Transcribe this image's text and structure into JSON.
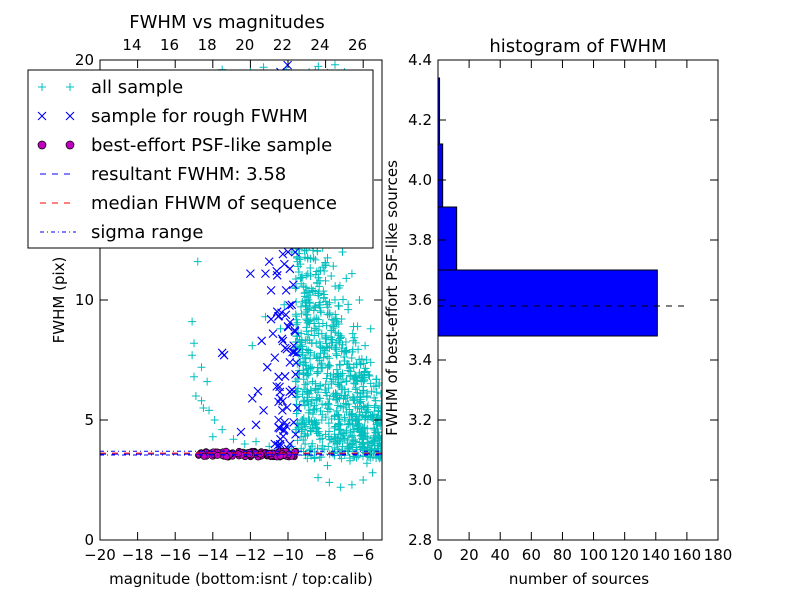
{
  "chart_data": [
    {
      "type": "scatter",
      "title": "FWHM vs magnitudes",
      "xlabel": "magnitude (bottom:isnt / top:calib)",
      "ylabel": "FWHM (pix)",
      "xlim": [
        -20,
        -5
      ],
      "ylim": [
        0,
        20
      ],
      "x_ticks": [
        -20,
        -18,
        -16,
        -14,
        -12,
        -10,
        -8,
        -6
      ],
      "x_tick_labels": [
        "−20",
        "−18",
        "−16",
        "−14",
        "−12",
        "−10",
        "−8",
        "−6"
      ],
      "y_ticks": [
        0,
        5,
        10,
        15,
        20
      ],
      "y_tick_labels": [
        "0",
        "5",
        "10",
        "15",
        "20"
      ],
      "top_axis": {
        "offset": 32.3,
        "ticks": [
          14,
          16,
          18,
          20,
          22,
          24,
          26
        ],
        "tick_labels": [
          "14",
          "16",
          "18",
          "20",
          "22",
          "24",
          "26"
        ]
      },
      "legend": {
        "placement": "upper-left",
        "entries": [
          {
            "label": "all sample",
            "marker": "+",
            "color": "#00bfbf"
          },
          {
            "label": "sample for rough FWHM",
            "marker": "x",
            "color": "#0000ff"
          },
          {
            "label": "best-effort PSF-like sample",
            "marker": "o",
            "color": "#bf00bf"
          },
          {
            "label": "resultant FWHM: 3.58",
            "marker": "dashed",
            "color": "#0000ff"
          },
          {
            "label": "median FHWM of sequence",
            "marker": "dashed",
            "color": "#ff0000"
          },
          {
            "label": "sigma range",
            "marker": "dashdot",
            "color": "#0000ff"
          }
        ]
      },
      "series": [
        {
          "name": "all sample",
          "points": [
            [
              -15.1,
              9.1
            ],
            [
              -15.0,
              8.2
            ],
            [
              -14.8,
              11.6
            ],
            [
              -15.1,
              7.7
            ],
            [
              -15.0,
              6.8
            ],
            [
              -14.3,
              6.6
            ],
            [
              -14.6,
              7.2
            ],
            [
              -14.9,
              6.0
            ],
            [
              -14.6,
              5.8
            ],
            [
              -14.5,
              5.5
            ],
            [
              -14.2,
              5.4
            ],
            [
              -13.9,
              5.0
            ],
            [
              -13.5,
              4.6
            ],
            [
              -14.0,
              4.3
            ],
            [
              -12.9,
              4.2
            ],
            [
              -12.3,
              4.0
            ],
            [
              -11.7,
              4.1
            ],
            [
              -11.0,
              3.9
            ],
            [
              -10.5,
              4.0
            ],
            [
              -10.0,
              3.8
            ],
            [
              -12.4,
              14.1
            ],
            [
              -11.6,
              17.5
            ],
            [
              -11.1,
              16.5
            ],
            [
              -10.8,
              14.3
            ],
            [
              -12.0,
              19.5
            ],
            [
              -14.2,
              19.4
            ],
            [
              -13.5,
              19.6
            ],
            [
              -13.3,
              19.2
            ],
            [
              -11.3,
              19.7
            ],
            [
              -10.1,
              19.6
            ],
            [
              -9.5,
              19.2
            ],
            [
              -9.9,
              18.6
            ],
            [
              -9.3,
              17.8
            ],
            [
              -9.6,
              16.4
            ],
            [
              -9.1,
              15.8
            ],
            [
              -9.4,
              14.9
            ],
            [
              -9.0,
              14.1
            ],
            [
              -9.7,
              13.2
            ],
            [
              -9.2,
              12.4
            ],
            [
              -9.5,
              11.6
            ],
            [
              -8.8,
              11.0
            ],
            [
              -9.1,
              10.3
            ],
            [
              -8.6,
              9.7
            ],
            [
              -8.9,
              9.1
            ],
            [
              -9.3,
              8.6
            ],
            [
              -8.5,
              8.2
            ],
            [
              -8.8,
              7.8
            ],
            [
              -9.2,
              7.3
            ],
            [
              -8.4,
              7.0
            ],
            [
              -8.7,
              6.6
            ],
            [
              -9.0,
              6.2
            ],
            [
              -8.3,
              5.9
            ],
            [
              -8.6,
              5.6
            ],
            [
              -8.9,
              5.3
            ],
            [
              -8.2,
              5.0
            ],
            [
              -8.5,
              4.7
            ],
            [
              -8.0,
              4.4
            ],
            [
              -7.7,
              4.2
            ],
            [
              -7.4,
              4.0
            ],
            [
              -7.1,
              3.9
            ],
            [
              -6.8,
              3.8
            ],
            [
              -6.4,
              4.1
            ],
            [
              -6.0,
              4.3
            ],
            [
              -5.7,
              4.0
            ],
            [
              -5.4,
              3.8
            ],
            [
              -5.2,
              4.5
            ],
            [
              -5.5,
              5.2
            ],
            [
              -5.8,
              6.0
            ],
            [
              -6.1,
              6.6
            ],
            [
              -6.5,
              7.2
            ],
            [
              -6.9,
              7.8
            ],
            [
              -7.3,
              8.3
            ],
            [
              -7.6,
              8.9
            ],
            [
              -7.9,
              9.4
            ],
            [
              -8.1,
              10.1
            ],
            [
              -8.3,
              10.8
            ],
            [
              -8.0,
              11.5
            ],
            [
              -7.8,
              12.3
            ],
            [
              -8.2,
              13.0
            ],
            [
              -7.9,
              13.8
            ],
            [
              -8.4,
              14.6
            ],
            [
              -8.1,
              15.3
            ],
            [
              -8.6,
              16.1
            ],
            [
              -8.3,
              16.9
            ],
            [
              -8.8,
              17.7
            ],
            [
              -8.5,
              18.6
            ],
            [
              -8.9,
              19.3
            ],
            [
              -7.5,
              19.8
            ],
            [
              -7.0,
              19.5
            ],
            [
              -6.7,
              18.4
            ],
            [
              -7.2,
              17.0
            ],
            [
              -6.9,
              16.0
            ],
            [
              -7.4,
              15.1
            ],
            [
              -7.0,
              14.0
            ],
            [
              -7.5,
              13.1
            ],
            [
              -7.1,
              12.0
            ],
            [
              -6.6,
              11.1
            ],
            [
              -6.2,
              10.0
            ],
            [
              -6.8,
              9.6
            ],
            [
              -6.3,
              8.9
            ],
            [
              -5.9,
              8.1
            ],
            [
              -5.6,
              7.4
            ],
            [
              -5.3,
              6.7
            ],
            [
              -5.6,
              8.8
            ],
            [
              -6.0,
              2.5
            ],
            [
              -6.6,
              2.3
            ],
            [
              -7.2,
              2.2
            ],
            [
              -7.8,
              2.4
            ],
            [
              -8.4,
              2.6
            ],
            [
              -5.5,
              2.8
            ],
            [
              -7.5,
              5.2
            ],
            [
              -7.2,
              4.8
            ],
            [
              -6.9,
              4.5
            ],
            [
              -6.6,
              5.0
            ],
            [
              -6.3,
              5.5
            ],
            [
              -7.0,
              6.0
            ],
            [
              -7.7,
              6.5
            ],
            [
              -7.4,
              7.1
            ],
            [
              -6.7,
              6.8
            ],
            [
              -8.1,
              7.6
            ],
            [
              -7.8,
              8.0
            ],
            [
              -7.3,
              9.0
            ],
            [
              -8.2,
              8.6
            ],
            [
              -6.5,
              4.6
            ],
            [
              -6.2,
              4.8
            ],
            [
              -5.9,
              5.1
            ],
            [
              -7.6,
              3.6
            ],
            [
              -8.3,
              4.2
            ],
            [
              -8.7,
              4.8
            ],
            [
              -9.1,
              5.6
            ],
            [
              -9.4,
              6.9
            ],
            [
              -9.6,
              8.0
            ],
            [
              -10.2,
              9.8
            ],
            [
              -10.4,
              8.8
            ],
            [
              -11.2,
              9.3
            ],
            [
              -10.7,
              12.8
            ],
            [
              -11.9,
              8.1
            ],
            [
              -9.8,
              3.9
            ],
            [
              -7.3,
              10.5
            ],
            [
              -6.9,
              10.9
            ],
            [
              -7.7,
              11.0
            ],
            [
              -8.0,
              12.7
            ],
            [
              -6.4,
              12.5
            ],
            [
              -7.6,
              14.4
            ],
            [
              -7.9,
              16.6
            ],
            [
              -8.7,
              15.5
            ],
            [
              -9.0,
              13.3
            ],
            [
              -9.8,
              12.0
            ],
            [
              -5.8,
              3.2
            ],
            [
              -6.7,
              3.3
            ],
            [
              -7.9,
              3.1
            ],
            [
              -8.6,
              3.4
            ],
            [
              -9.3,
              3.8
            ]
          ]
        },
        {
          "name": "sample for rough FWHM",
          "points": [
            [
              -12.0,
              11.1
            ],
            [
              -12.5,
              4.5
            ],
            [
              -13.5,
              7.8
            ],
            [
              -13.4,
              7.7
            ],
            [
              -11.1,
              7.2
            ],
            [
              -11.6,
              6.2
            ],
            [
              -11.9,
              5.9
            ],
            [
              -11.3,
              5.4
            ],
            [
              -11.7,
              4.8
            ],
            [
              -11.2,
              11.1
            ],
            [
              -11.0,
              11.6
            ],
            [
              -10.9,
              10.4
            ],
            [
              -10.8,
              8.6
            ],
            [
              -10.7,
              7.6
            ],
            [
              -10.5,
              6.8
            ],
            [
              -10.6,
              6.4
            ],
            [
              -10.4,
              5.9
            ],
            [
              -10.3,
              5.4
            ],
            [
              -10.5,
              5.0
            ],
            [
              -10.2,
              4.6
            ],
            [
              -10.4,
              4.2
            ],
            [
              -10.0,
              12.0
            ],
            [
              -9.9,
              11.3
            ],
            [
              -10.1,
              10.4
            ],
            [
              -9.8,
              9.8
            ],
            [
              -10.0,
              8.9
            ],
            [
              -9.7,
              8.1
            ],
            [
              -9.9,
              7.4
            ],
            [
              -9.6,
              6.9
            ],
            [
              -9.8,
              6.1
            ],
            [
              -9.5,
              5.5
            ],
            [
              -9.7,
              4.9
            ],
            [
              -9.6,
              4.4
            ],
            [
              -9.9,
              4.0
            ],
            [
              -10.3,
              13.0
            ],
            [
              -10.0,
              13.9
            ],
            [
              -9.8,
              14.4
            ],
            [
              -9.9,
              15.3
            ],
            [
              -10.2,
              16.1
            ],
            [
              -10.5,
              17.2
            ],
            [
              -10.1,
              18.0
            ],
            [
              -9.8,
              18.8
            ],
            [
              -10.4,
              19.5
            ],
            [
              -9.7,
              12.6
            ],
            [
              -10.6,
              11.2
            ],
            [
              -10.9,
              9.2
            ],
            [
              -11.4,
              8.3
            ],
            [
              -10.0,
              3.8
            ],
            [
              -10.7,
              4.0
            ]
          ]
        },
        {
          "name": "best-effort PSF-like sample",
          "x_range": [
            -14.8,
            -9.5
          ],
          "y_range": [
            3.45,
            3.7
          ],
          "count": 140
        },
        {
          "name": "resultant FWHM: 3.58",
          "type": "hline",
          "y": 3.58,
          "style": "dashed",
          "color": "#0000ff"
        },
        {
          "name": "median FHWM of sequence",
          "type": "hline",
          "y": 3.62,
          "style": "dashed",
          "color": "#ff0000"
        },
        {
          "name": "sigma range",
          "type": "hline",
          "y": [
            3.54,
            3.7
          ],
          "style": "dashdot",
          "color": "#0000ff"
        }
      ]
    },
    {
      "type": "bar",
      "orientation": "horizontal",
      "title": "histogram of FWHM",
      "xlabel": "number of sources",
      "ylabel": "FWHM of best-effort PSF-like sources",
      "xlim": [
        0,
        180
      ],
      "ylim": [
        2.8,
        4.4
      ],
      "x_ticks": [
        0,
        20,
        40,
        60,
        80,
        100,
        120,
        140,
        160,
        180
      ],
      "x_tick_labels": [
        "0",
        "20",
        "40",
        "60",
        "80",
        "100",
        "120",
        "140",
        "160",
        "180"
      ],
      "y_ticks": [
        2.8,
        3.0,
        3.2,
        3.4,
        3.6,
        3.8,
        4.0,
        4.2,
        4.4
      ],
      "y_tick_labels": [
        "2.8",
        "3.0",
        "3.2",
        "3.4",
        "3.6",
        "3.8",
        "4.0",
        "4.2",
        "4.4"
      ],
      "bars": [
        {
          "y0": 3.48,
          "y1": 3.7,
          "value": 141
        },
        {
          "y0": 3.7,
          "y1": 3.91,
          "value": 12
        },
        {
          "y0": 3.91,
          "y1": 4.12,
          "value": 3
        },
        {
          "y0": 4.12,
          "y1": 4.34,
          "value": 1
        }
      ],
      "bar_color": "#0000ff",
      "reference_line": {
        "y": 3.58,
        "x_range": [
          0,
          160
        ],
        "style": "dashed"
      }
    }
  ]
}
